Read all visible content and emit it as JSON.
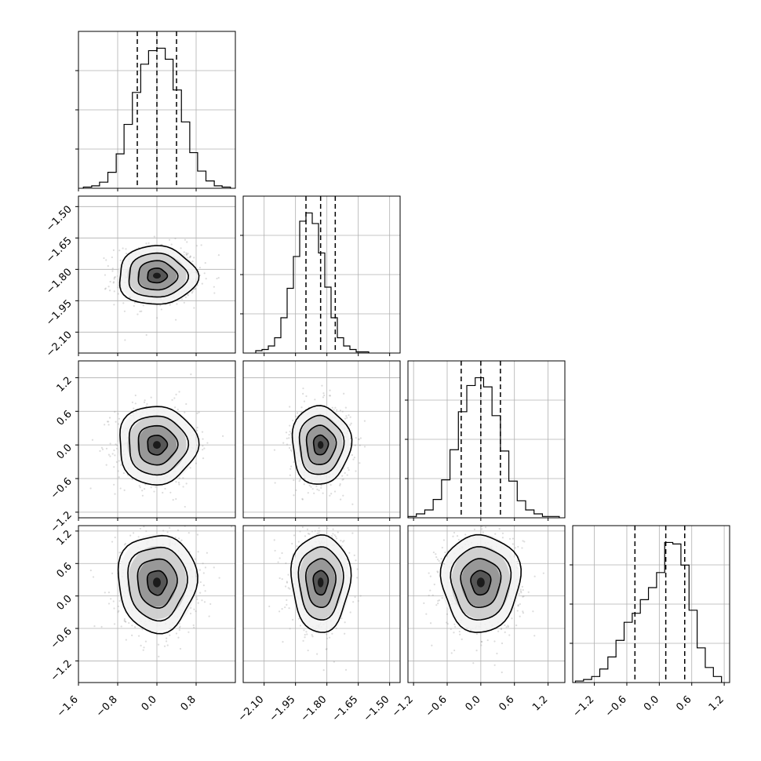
{
  "chart_data": {
    "type": "corner",
    "grid_lines": true,
    "parameters": [
      {
        "range": [
          -1.6,
          1.6
        ],
        "ticks": [
          -1.6,
          -0.8,
          0.0,
          0.8
        ],
        "tick_labels": [
          "−1.6",
          "−0.8",
          "0.0",
          "0.8"
        ],
        "center": 0.0,
        "sigma": 0.4,
        "quantiles": [
          -0.4,
          0.0,
          0.4
        ],
        "hist_bins": [
          -1.5,
          -1.33,
          -1.17,
          -1.0,
          -0.83,
          -0.67,
          -0.5,
          -0.33,
          -0.17,
          0.0,
          0.17,
          0.33,
          0.5,
          0.67,
          0.83,
          1.0,
          1.17,
          1.33,
          1.5
        ],
        "hist_counts": [
          1,
          2,
          5,
          13,
          28,
          52,
          78,
          101,
          112,
          114,
          105,
          80,
          54,
          29,
          14,
          6,
          2,
          1
        ]
      },
      {
        "range": [
          -2.2,
          -1.45
        ],
        "ticks": [
          -2.1,
          -1.95,
          -1.8,
          -1.65,
          -1.5
        ],
        "tick_labels": [
          "−2.10",
          "−1.95",
          "−1.80",
          "−1.65",
          "−1.50"
        ],
        "center": -1.83,
        "sigma": 0.07,
        "quantiles": [
          -1.9,
          -1.83,
          -1.76
        ],
        "hist_bins": [
          -2.14,
          -2.11,
          -2.08,
          -2.05,
          -2.02,
          -1.99,
          -1.96,
          -1.93,
          -1.9,
          -1.87,
          -1.84,
          -1.81,
          -1.78,
          -1.75,
          -1.72,
          -1.69,
          -1.66,
          -1.63,
          -1.6
        ],
        "hist_counts": [
          2,
          3,
          6,
          13,
          30,
          55,
          82,
          112,
          119,
          110,
          85,
          56,
          30,
          13,
          6,
          3,
          1,
          1
        ]
      },
      {
        "range": [
          -1.3,
          1.5
        ],
        "ticks": [
          -1.2,
          -0.6,
          0.0,
          0.6,
          1.2
        ],
        "tick_labels": [
          "−1.2",
          "−0.6",
          "0.0",
          "0.6",
          "1.2"
        ],
        "center": 0.0,
        "sigma": 0.35,
        "quantiles": [
          -0.35,
          0.0,
          0.35
        ],
        "hist_bins": [
          -1.3,
          -1.15,
          -1.0,
          -0.85,
          -0.7,
          -0.55,
          -0.4,
          -0.25,
          -0.1,
          0.05,
          0.2,
          0.35,
          0.5,
          0.65,
          0.8,
          0.95,
          1.1,
          1.25,
          1.4
        ],
        "hist_counts": [
          1,
          3,
          6,
          14,
          29,
          52,
          81,
          101,
          107,
          100,
          78,
          51,
          28,
          13,
          6,
          3,
          1,
          1
        ]
      },
      {
        "range": [
          -1.6,
          1.3
        ],
        "ticks": [
          -1.2,
          -0.6,
          0.0,
          0.6,
          1.2
        ],
        "tick_labels": [
          "−1.2",
          "−0.6",
          "0.0",
          "0.6",
          "1.2"
        ],
        "center": 0.25,
        "sigma": 0.45,
        "quantiles": [
          -0.45,
          0.12,
          0.47
        ],
        "hist_bins": [
          -1.55,
          -1.4,
          -1.25,
          -1.1,
          -0.95,
          -0.8,
          -0.65,
          -0.5,
          -0.35,
          -0.2,
          -0.05,
          0.1,
          0.25,
          0.4,
          0.55,
          0.7,
          0.85,
          1.0,
          1.15
        ],
        "hist_counts": [
          1,
          2,
          4,
          9,
          17,
          28,
          40,
          46,
          55,
          63,
          73,
          93,
          92,
          78,
          48,
          23,
          10,
          4
        ]
      }
    ],
    "panels": [
      {
        "row": 0,
        "col": 0,
        "kind": "hist"
      },
      {
        "row": 1,
        "col": 0,
        "kind": "2d"
      },
      {
        "row": 1,
        "col": 1,
        "kind": "hist"
      },
      {
        "row": 2,
        "col": 0,
        "kind": "2d"
      },
      {
        "row": 2,
        "col": 1,
        "kind": "2d"
      },
      {
        "row": 2,
        "col": 2,
        "kind": "hist"
      },
      {
        "row": 3,
        "col": 0,
        "kind": "2d"
      },
      {
        "row": 3,
        "col": 1,
        "kind": "2d"
      },
      {
        "row": 3,
        "col": 2,
        "kind": "2d"
      },
      {
        "row": 3,
        "col": 3,
        "kind": "hist"
      }
    ],
    "contour_levels_sigma": [
      0.5,
      1.0,
      1.5,
      2.0
    ],
    "colors": {
      "contour": "#000000",
      "scatter": "#9a9a9a",
      "density_dark": "#111111",
      "grid": "#b0b0b0"
    }
  }
}
